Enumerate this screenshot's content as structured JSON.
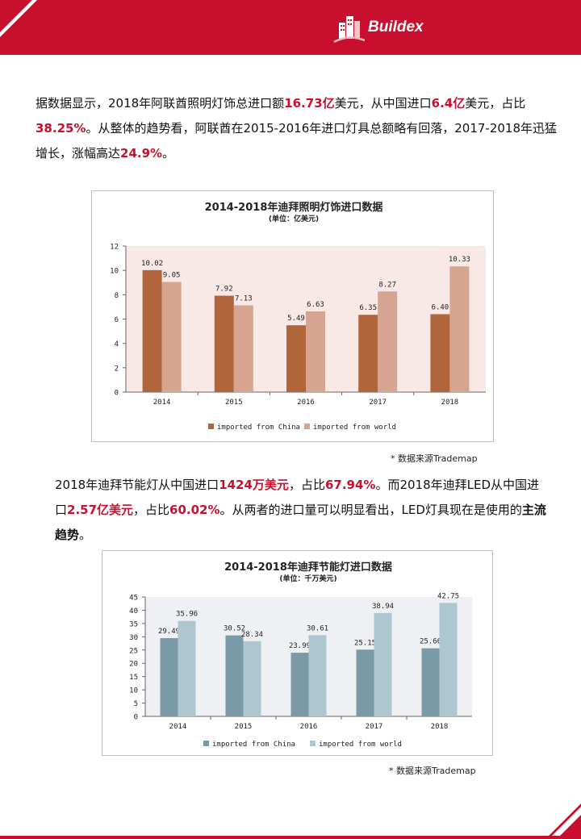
{
  "header": {
    "brand": "Buildex"
  },
  "para1": {
    "s1": "据数据显示，2018年阿联酋照明灯饰总进口额",
    "v1": "16.73亿",
    "s2": "美元，从中国进口",
    "v2": "6.4亿",
    "s3": "美元，占比",
    "v3": "38.25%",
    "s4": "。从整体的趋势看，阿联酋在2015-2016年进口灯具总额略有回落，2017-2018年迅猛增长，涨幅高达",
    "v4": "24.9%",
    "s5": "。"
  },
  "para2": {
    "s1": "2018年迪拜节能灯从中国进口",
    "v1": "1424万美元",
    "s2": "，占比",
    "v2": "67.94%",
    "s3": "。而2018年迪拜LED从中国进口",
    "v3": "2.57亿美元",
    "s4": "，占比",
    "v4": "60.02%",
    "s5": "。从两者的进口量可以明显看出，LED灯具现在是使用的",
    "v5": "主流趋势",
    "s6": "。"
  },
  "source1": "* 数据来源Trademap",
  "source2": "* 数据来源Trademap",
  "chart_data": [
    {
      "type": "bar",
      "title": "2014-2018年迪拜照明灯饰进口数据",
      "subtitle": "(单位：亿美元)",
      "categories": [
        "2014",
        "2015",
        "2016",
        "2017",
        "2018"
      ],
      "series": [
        {
          "name": "imported from China",
          "values": [
            10.02,
            7.92,
            5.49,
            6.35,
            6.4
          ],
          "labels": [
            "10.02",
            "7.92",
            "5.49",
            "6.35",
            "6.40"
          ],
          "color": "#b0653a"
        },
        {
          "name": "imported from world",
          "values": [
            9.05,
            7.13,
            6.63,
            8.27,
            10.33
          ],
          "labels": [
            "9.05",
            "7.13",
            "6.63",
            "8.27",
            "10.33"
          ],
          "color": "#d6a591"
        }
      ],
      "ylim": [
        0,
        12
      ],
      "yticks": [
        0,
        2,
        4,
        6,
        8,
        10,
        12
      ],
      "plot_bg": "#f8e9e6",
      "legend_position": "bottom",
      "grid": false
    },
    {
      "type": "bar",
      "title": "2014-2018年迪拜节能灯进口数据",
      "subtitle": "(单位：千万美元)",
      "categories": [
        "2014",
        "2015",
        "2016",
        "2017",
        "2018"
      ],
      "series": [
        {
          "name": "imported from China",
          "values": [
            29.49,
            30.52,
            23.99,
            25.15,
            25.66
          ],
          "labels": [
            "29.49",
            "30.52",
            "23.99",
            "25.15",
            "25.66"
          ],
          "color": "#7b9aa8"
        },
        {
          "name": "imported from world",
          "values": [
            35.96,
            28.34,
            30.61,
            38.94,
            42.75
          ],
          "labels": [
            "35.96",
            "28.34",
            "30.61",
            "38.94",
            "42.75"
          ],
          "color": "#aec6d0"
        }
      ],
      "ylim": [
        0,
        45
      ],
      "yticks": [
        0,
        5,
        10,
        15,
        20,
        25,
        30,
        35,
        40,
        45
      ],
      "plot_bg": "#eef0f3",
      "legend_position": "bottom",
      "grid": false
    }
  ]
}
